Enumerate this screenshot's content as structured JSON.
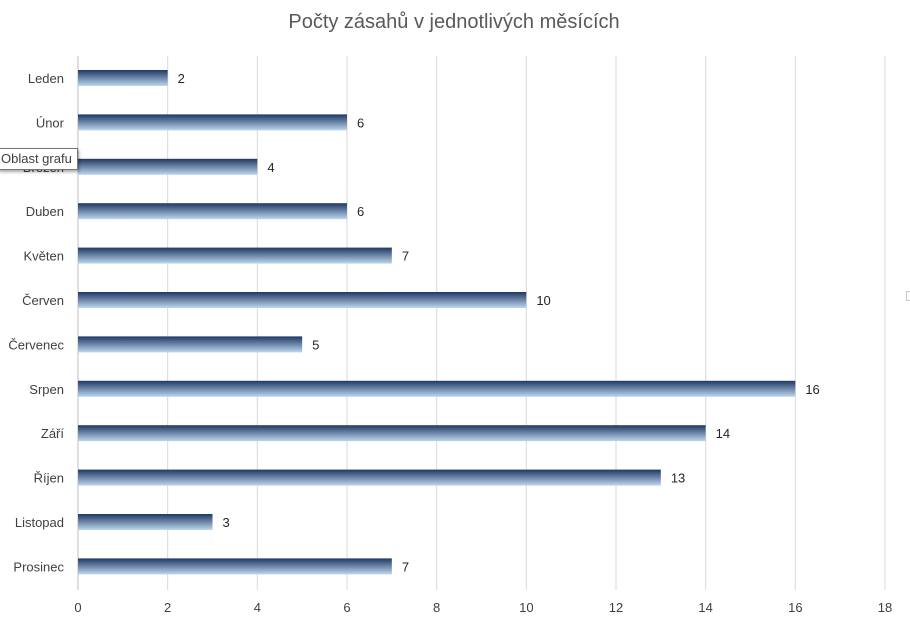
{
  "chart_data": {
    "type": "bar",
    "orientation": "horizontal",
    "title": "Počty zásahů v jednotlivých měsících",
    "xlabel": "",
    "ylabel": "",
    "categories": [
      "Leden",
      "Únor",
      "Březen",
      "Duben",
      "Květen",
      "Červen",
      "Červenec",
      "Srpen",
      "Září",
      "Říjen",
      "Listopad",
      "Prosinec"
    ],
    "values": [
      2,
      6,
      4,
      6,
      7,
      10,
      5,
      16,
      14,
      13,
      3,
      7
    ],
    "xlim": [
      0,
      18
    ],
    "ticks": [
      "0",
      "2",
      "4",
      "6",
      "8",
      "10",
      "12",
      "14",
      "16",
      "18"
    ],
    "grid": true,
    "legend": "none",
    "data_labels": true,
    "colors": {
      "bar_top": "#1f3864",
      "bar_bottom": "#bdd7ee",
      "gridline": "#d9d9d9"
    }
  },
  "tooltip": {
    "text": "Oblast grafu"
  }
}
